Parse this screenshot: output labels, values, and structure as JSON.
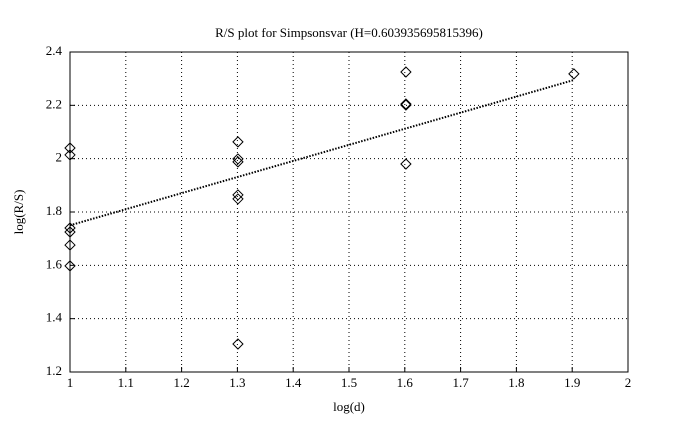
{
  "chart_data": {
    "type": "scatter",
    "title": "R/S plot for Simpsonsvar (H=0.603935695815396)",
    "x_label": "log(d)",
    "y_label": "log(R/S)",
    "xlim": [
      1,
      2
    ],
    "xticks": [
      1,
      1.1,
      1.2,
      1.3,
      1.4,
      1.5,
      1.6,
      1.7,
      1.8,
      1.9,
      2
    ],
    "ylim": [
      1.2,
      2.4
    ],
    "yticks": [
      1.2,
      1.4,
      1.6,
      1.8,
      2,
      2.2,
      2.4
    ],
    "grid": true,
    "series": [
      {
        "marker": "diamond",
        "color": "#000000",
        "x": [
          1,
          1,
          1,
          1,
          1,
          1,
          1.301,
          1.301,
          1.301,
          1.301,
          1.301,
          1.301,
          1.602,
          1.602,
          1.602,
          1.602,
          1.903
        ],
        "values": [
          2.04,
          2.014,
          1.74,
          1.725,
          1.676,
          1.598,
          2.063,
          1.999,
          1.988,
          1.864,
          1.849,
          1.305,
          2.325,
          2.205,
          2.201,
          1.98,
          2.318
        ]
      },
      {
        "marker": "dotted-line",
        "color": "#000000",
        "x": [
          1,
          1.903
        ],
        "values": [
          1.75,
          2.295
        ]
      }
    ]
  }
}
